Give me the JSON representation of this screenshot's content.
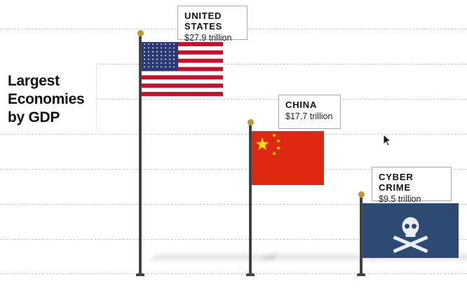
{
  "chart_data": {
    "type": "bar",
    "title": "Largest Economies by GDP",
    "categories": [
      "UNITED STATES",
      "CHINA",
      "CYBER CRIME"
    ],
    "values": [
      27.9,
      17.7,
      9.5
    ],
    "value_labels": [
      "$27.9 trillion",
      "$17.7 trillion",
      "$9.5 trillion"
    ],
    "unit": "trillion USD",
    "grid": true,
    "marks": [
      "us-flag",
      "china-flag",
      "pirate-flag"
    ],
    "colors": {
      "us_red": "#c8102e",
      "us_blue": "#2b3a75",
      "china_red": "#de2910",
      "china_star": "#ffde00",
      "pirate": "#2c4a72",
      "pole": "#3a3a3a",
      "finial": "#b89a3a"
    }
  }
}
